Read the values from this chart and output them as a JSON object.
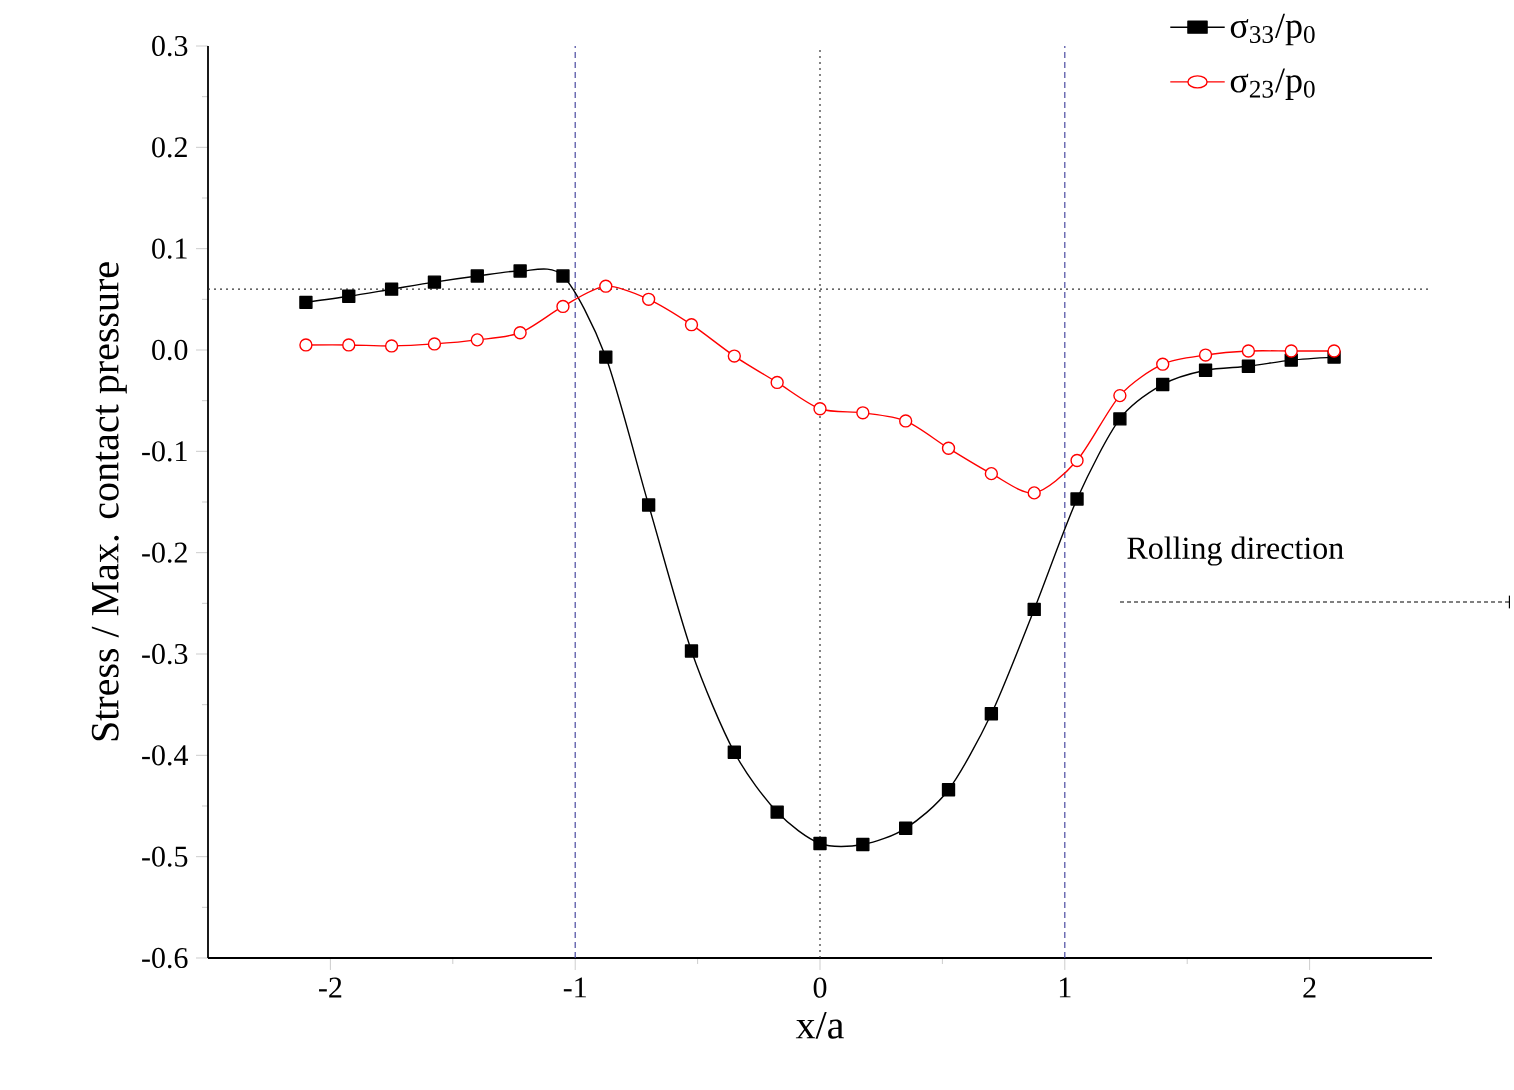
{
  "chart_data": {
    "type": "line",
    "xlabel": "x/a",
    "ylabel": "Stress / Max. contact pressure",
    "x": [
      -2.1,
      -1.925,
      -1.75,
      -1.575,
      -1.4,
      -1.225,
      -1.05,
      -0.875,
      -0.7,
      -0.525,
      -0.35,
      -0.175,
      0,
      0.175,
      0.35,
      0.525,
      0.7,
      0.875,
      1.05,
      1.225,
      1.4,
      1.575,
      1.75,
      1.925,
      2.1
    ],
    "series": [
      {
        "name": "σ$_{33}$/p$_{0}$",
        "color": "#000000",
        "marker": "square",
        "values": [
          0.047,
          0.053,
          0.06,
          0.067,
          0.073,
          0.078,
          0.073,
          -0.007,
          -0.153,
          -0.297,
          -0.397,
          -0.456,
          -0.487,
          -0.488,
          -0.472,
          -0.434,
          -0.359,
          -0.256,
          -0.147,
          -0.068,
          -0.034,
          -0.02,
          -0.016,
          -0.01,
          -0.007
        ]
      },
      {
        "name": "σ$_{23}$/p$_{0}$",
        "color": "#ff0000",
        "marker": "circle",
        "values": [
          0.005,
          0.005,
          0.004,
          0.006,
          0.01,
          0.017,
          0.043,
          0.063,
          0.05,
          0.025,
          -0.006,
          -0.032,
          -0.058,
          -0.062,
          -0.07,
          -0.097,
          -0.122,
          -0.141,
          -0.109,
          -0.045,
          -0.014,
          -0.005,
          -0.001,
          -0.001,
          -0.001
        ]
      }
    ],
    "xlim": [
      -2.5,
      2.5
    ],
    "ylim": [
      -0.6,
      0.3
    ],
    "xticks": [
      -2,
      -1,
      0,
      1,
      2
    ],
    "yticks": [
      {
        "value": -0.6,
        "label": "-0.6"
      },
      {
        "value": -0.5,
        "label": "-0.5"
      },
      {
        "value": -0.4,
        "label": "-0.4"
      },
      {
        "value": -0.3,
        "label": "-0.3"
      },
      {
        "value": -0.2,
        "label": "-0.2"
      },
      {
        "value": -0.1,
        "label": "-0.1"
      },
      {
        "value": 0,
        "label": "0.0"
      },
      {
        "value": 0.1,
        "label": "0.1"
      },
      {
        "value": 0.2,
        "label": "0.2"
      },
      {
        "value": 0.3,
        "label": "0.3"
      }
    ],
    "ref_lines": [
      {
        "axis": "y",
        "value": 0.06,
        "color": "#333333",
        "line_style": "dotted"
      },
      {
        "axis": "x",
        "value": -1,
        "color": "#4a4aa0",
        "line_style": "dashed"
      },
      {
        "axis": "x",
        "value": 0,
        "color": "#333333",
        "line_style": "dotted"
      },
      {
        "axis": "x",
        "value": 1,
        "color": "#4a4aa0",
        "line_style": "dashed"
      }
    ],
    "annotations": [
      "Rolling direction"
    ],
    "grid": false,
    "legend": "top right"
  }
}
